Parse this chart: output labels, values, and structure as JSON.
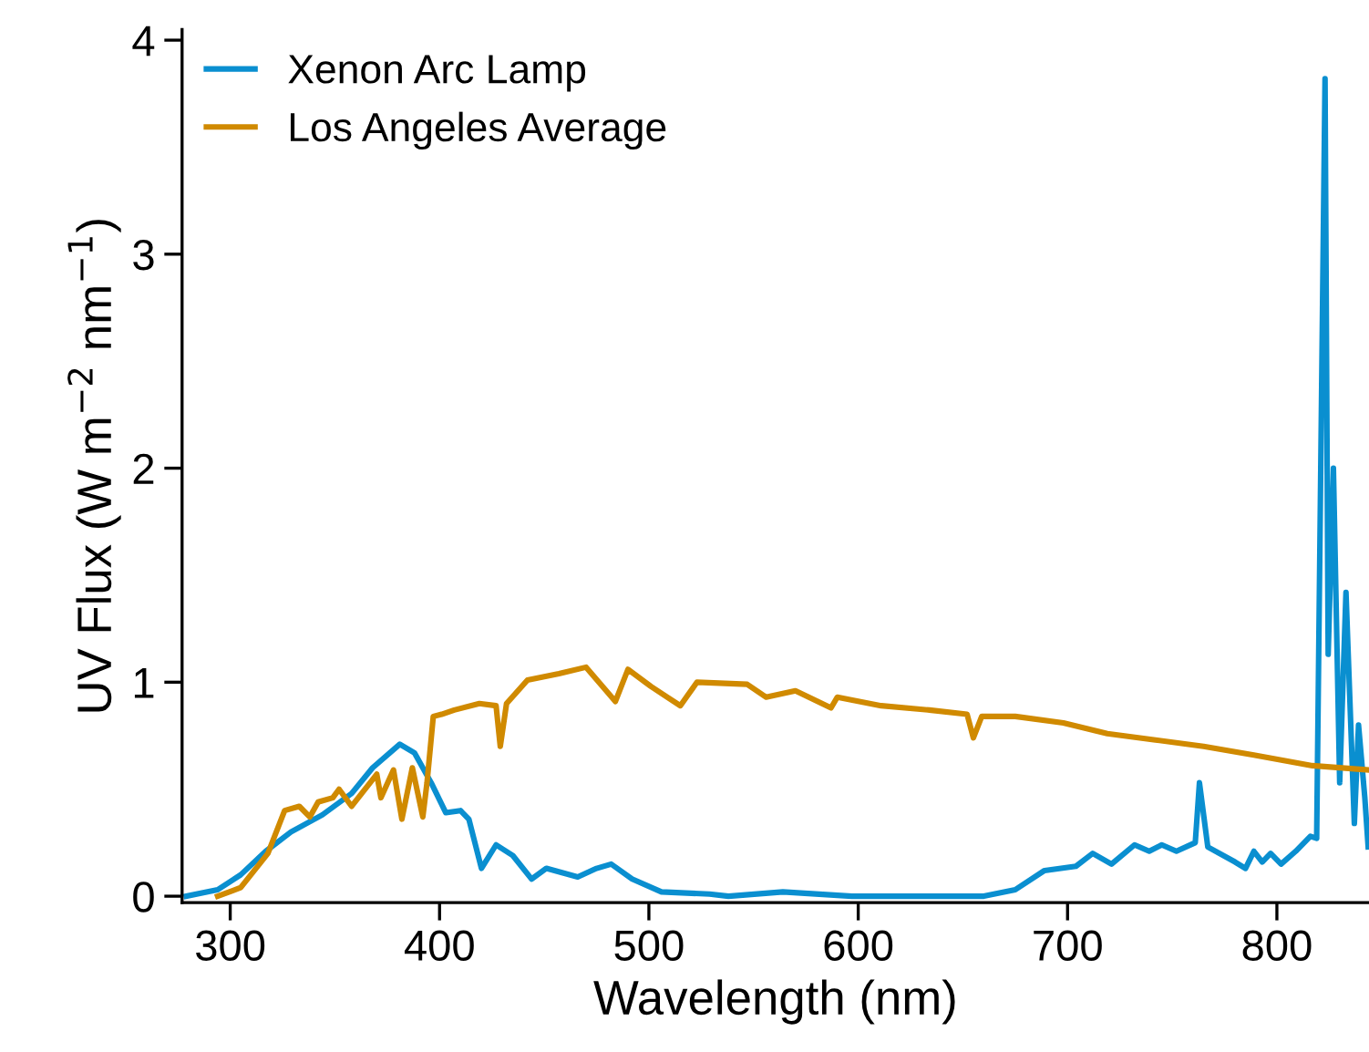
{
  "chart_data": {
    "type": "line",
    "xlabel": "Wavelength (nm)",
    "ylabel": "UV Flux (W m$^{−2}$ nm$^{−1}$)",
    "xlim": [
      277,
      844
    ],
    "ylim": [
      -0.03,
      4.05
    ],
    "xticks": [
      300,
      400,
      500,
      600,
      700,
      800
    ],
    "yticks": [
      0,
      1,
      2,
      3,
      4
    ],
    "grid": false,
    "legend": "top left",
    "marker": "none",
    "line_style": "solid",
    "series": [
      {
        "name": "Xenon Arc Lamp",
        "color": "#0a8fd0",
        "x": [
          279,
          294,
          305,
          317,
          329,
          344,
          358,
          368,
          381,
          388,
          396,
          403,
          410,
          414,
          420,
          427,
          435,
          444,
          451,
          466,
          475,
          482,
          492,
          506,
          529,
          538,
          564,
          597,
          660,
          675,
          689,
          704,
          712,
          721,
          732,
          739,
          745,
          752,
          761,
          763,
          767,
          780,
          785,
          789,
          793,
          797,
          802,
          809,
          816,
          819,
          823,
          824.5,
          827,
          830,
          833,
          837,
          839,
          842,
          843.6
        ],
        "values": [
          0,
          0.03,
          0.1,
          0.21,
          0.3,
          0.38,
          0.48,
          0.6,
          0.71,
          0.67,
          0.53,
          0.39,
          0.4,
          0.36,
          0.13,
          0.24,
          0.19,
          0.08,
          0.13,
          0.09,
          0.13,
          0.15,
          0.08,
          0.02,
          0.01,
          0.0,
          0.02,
          0.0,
          0.0,
          0.03,
          0.12,
          0.14,
          0.2,
          0.15,
          0.24,
          0.21,
          0.24,
          0.21,
          0.25,
          0.53,
          0.23,
          0.16,
          0.13,
          0.21,
          0.16,
          0.2,
          0.15,
          0.21,
          0.28,
          0.27,
          3.82,
          1.13,
          2.0,
          0.53,
          1.42,
          0.34,
          0.8,
          0.46,
          0.23
        ]
      },
      {
        "name": "Los Angeles Average",
        "color": "#d08a00",
        "x": [
          294,
          305,
          318,
          326,
          333,
          338,
          342,
          349,
          352,
          358,
          370,
          372,
          378,
          382,
          387,
          392,
          394,
          397,
          401,
          407,
          419,
          427,
          429,
          432,
          442,
          457,
          470,
          484,
          490,
          501,
          515,
          523,
          547,
          556,
          570,
          587,
          590,
          611,
          634,
          652,
          655,
          659,
          675,
          698,
          719,
          742,
          765,
          789,
          817,
          843.6
        ],
        "values": [
          0,
          0.04,
          0.2,
          0.4,
          0.42,
          0.37,
          0.44,
          0.46,
          0.5,
          0.42,
          0.57,
          0.46,
          0.59,
          0.36,
          0.6,
          0.37,
          0.53,
          0.84,
          0.85,
          0.87,
          0.9,
          0.89,
          0.7,
          0.9,
          1.01,
          1.04,
          1.07,
          0.91,
          1.06,
          0.98,
          0.89,
          1.0,
          0.99,
          0.93,
          0.96,
          0.88,
          0.93,
          0.89,
          0.87,
          0.85,
          0.74,
          0.84,
          0.84,
          0.81,
          0.76,
          0.73,
          0.7,
          0.66,
          0.61,
          0.59
        ]
      }
    ]
  }
}
